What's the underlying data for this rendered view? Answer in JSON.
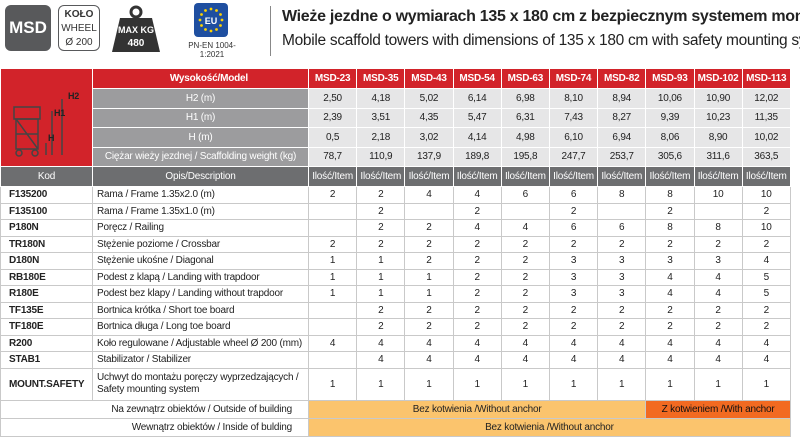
{
  "header": {
    "badge_model": "MSD",
    "badge_wheel": [
      "KOŁO",
      "WHEEL",
      "Ø 200"
    ],
    "badge_load": [
      "MAX KG",
      "480"
    ],
    "badge_eu": "EU",
    "standard": "PN-EN 1004-1:2021",
    "title_pl": "Wieże jezdne o wymiarach 135 x 180 cm z bezpiecznym systemem montażu",
    "title_en": "Mobile scaffold towers with dimensions of 135 x 180 cm with safety mounting system"
  },
  "diagram_labels": [
    "H2",
    "H1",
    "H"
  ],
  "table": {
    "spec_header": "Wysokość/Model",
    "models": [
      "MSD-23",
      "MSD-35",
      "MSD-43",
      "MSD-54",
      "MSD-63",
      "MSD-74",
      "MSD-82",
      "MSD-93",
      "MSD-102",
      "MSD-113"
    ],
    "specs": [
      {
        "label": "H2 (m)",
        "values": [
          "2,50",
          "4,18",
          "5,02",
          "6,14",
          "6,98",
          "8,10",
          "8,94",
          "10,06",
          "10,90",
          "12,02"
        ]
      },
      {
        "label": "H1 (m)",
        "values": [
          "2,39",
          "3,51",
          "4,35",
          "5,47",
          "6,31",
          "7,43",
          "8,27",
          "9,39",
          "10,23",
          "11,35"
        ]
      },
      {
        "label": "H (m)",
        "values": [
          "0,5",
          "2,18",
          "3,02",
          "4,14",
          "4,98",
          "6,10",
          "6,94",
          "8,06",
          "8,90",
          "10,02"
        ]
      },
      {
        "label": "Ciężar wieży jezdnej / Scaffolding weight (kg)",
        "values": [
          "78,7",
          "110,9",
          "137,9",
          "189,8",
          "195,8",
          "247,7",
          "253,7",
          "305,6",
          "311,6",
          "363,5"
        ]
      }
    ],
    "code_header": "Kod",
    "desc_header": "Opis/Description",
    "qty_header": "Ilość/Item",
    "items": [
      {
        "code": "F135200",
        "desc": "Rama / Frame 1.35x2.0 (m)",
        "qty": [
          2,
          2,
          4,
          4,
          6,
          6,
          8,
          8,
          10,
          10
        ]
      },
      {
        "code": "F135100",
        "desc": "Rama / Frame 1.35x1.0 (m)",
        "qty": [
          null,
          2,
          null,
          2,
          null,
          2,
          null,
          2,
          null,
          2
        ]
      },
      {
        "code": "P180N",
        "desc": "Poręcz / Railing",
        "qty": [
          null,
          2,
          2,
          4,
          4,
          6,
          6,
          8,
          8,
          10
        ]
      },
      {
        "code": "TR180N",
        "desc": "Stężenie poziome / Crossbar",
        "qty": [
          2,
          2,
          2,
          2,
          2,
          2,
          2,
          2,
          2,
          2
        ]
      },
      {
        "code": "D180N",
        "desc": "Stężenie ukośne / Diagonal",
        "qty": [
          1,
          1,
          2,
          2,
          2,
          3,
          3,
          3,
          3,
          4
        ]
      },
      {
        "code": "RB180E",
        "desc": "Podest z klapą / Landing with trapdoor",
        "qty": [
          1,
          1,
          1,
          2,
          2,
          3,
          3,
          4,
          4,
          5
        ]
      },
      {
        "code": "R180E",
        "desc": "Podest bez klapy / Landing without trapdoor",
        "qty": [
          1,
          1,
          1,
          2,
          2,
          3,
          3,
          4,
          4,
          5
        ]
      },
      {
        "code": "TF135E",
        "desc": "Bortnica krótka / Short toe board",
        "qty": [
          null,
          2,
          2,
          2,
          2,
          2,
          2,
          2,
          2,
          2
        ]
      },
      {
        "code": "TF180E",
        "desc": "Bortnica długa / Long toe board",
        "qty": [
          null,
          2,
          2,
          2,
          2,
          2,
          2,
          2,
          2,
          2
        ]
      },
      {
        "code": "R200",
        "desc": "Koło regulowane / Adjustable wheel Ø 200 (mm)",
        "qty": [
          4,
          4,
          4,
          4,
          4,
          4,
          4,
          4,
          4,
          4
        ]
      },
      {
        "code": "STAB1",
        "desc": "Stabilizator / Stabilizer",
        "qty": [
          null,
          4,
          4,
          4,
          4,
          4,
          4,
          4,
          4,
          4
        ]
      },
      {
        "code": "MOUNT.SAFETY",
        "desc": "Uchwyt do montażu poręczy wyprzedzających / Safety mounting system",
        "qty": [
          1,
          1,
          1,
          1,
          1,
          1,
          1,
          1,
          1,
          1
        ]
      }
    ],
    "footer": [
      {
        "label": "Na zewnątrz obiektów / Outside of building",
        "segments": [
          "Bez kotwienia /Without anchor",
          "Z kotwieniem /With anchor"
        ]
      },
      {
        "label": "Wewnątrz obiektów / Inside of bulding",
        "segments": [
          "Bez kotwienia /Without anchor"
        ]
      }
    ]
  }
}
